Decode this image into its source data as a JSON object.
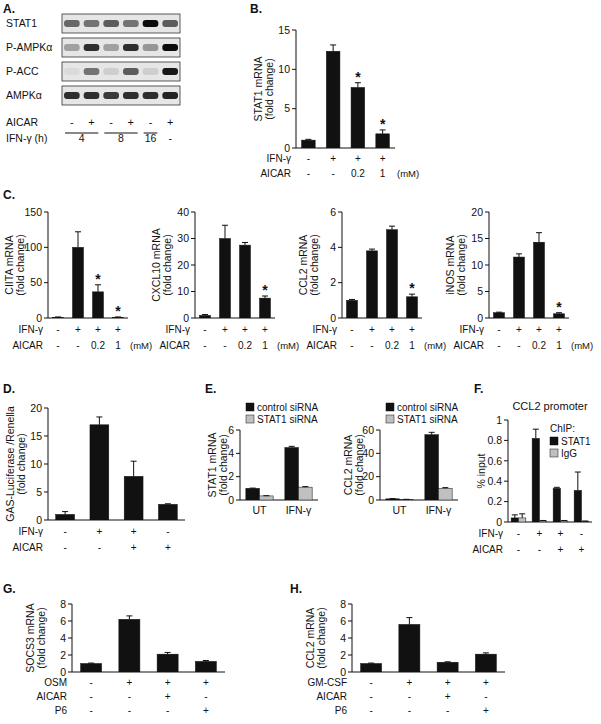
{
  "blot": {
    "panel_label": "A.",
    "rows": [
      "STAT1",
      "P-AMPKα",
      "P-ACC",
      "AMPKα"
    ],
    "conditions": [
      {
        "label": "AICAR",
        "marks": [
          "-",
          "+",
          "-",
          "+",
          "-",
          "+"
        ]
      },
      {
        "label": "IFN-γ (h)",
        "marks": [
          "4",
          "8",
          "16",
          "-"
        ]
      }
    ]
  },
  "chart_data": [
    {
      "type": "bar",
      "panel_label": "B.",
      "ylabel": [
        "STAT1 mRNA",
        "(fold change)"
      ],
      "categories": [
        null,
        null,
        null,
        null
      ],
      "values": [
        1,
        12.3,
        7.7,
        1.8
      ],
      "errors": [
        0.1,
        0.8,
        0.6,
        0.5
      ],
      "significance": [
        null,
        null,
        "*",
        "*"
      ],
      "color": "#111111",
      "ylim": [
        0,
        15
      ],
      "yticks": [
        0,
        5,
        10,
        15
      ],
      "grid": false,
      "conditions": [
        {
          "label": "IFN-γ",
          "marks": [
            "-",
            "+",
            "+",
            "+"
          ]
        },
        {
          "label": "AICAR",
          "marks": [
            "-",
            "-",
            "0.2",
            "1"
          ],
          "suffix": "(mM)"
        }
      ]
    },
    {
      "type": "bar",
      "panel_label": "C.",
      "ylabel": [
        "CIITA mRNA",
        "(fold change)"
      ],
      "categories": [
        null,
        null,
        null,
        null
      ],
      "values": [
        1,
        100,
        37,
        1
      ],
      "errors": [
        0.5,
        22,
        10,
        0.5
      ],
      "significance": [
        null,
        null,
        "*",
        "*"
      ],
      "color": "#111111",
      "ylim": [
        0,
        150
      ],
      "yticks": [
        0,
        50,
        100,
        150
      ],
      "grid": false,
      "conditions": [
        {
          "label": "IFN-γ",
          "marks": [
            "-",
            "+",
            "+",
            "+"
          ]
        },
        {
          "label": "AICAR",
          "marks": [
            "-",
            "-",
            "0.2",
            "1"
          ],
          "suffix": "(mM)"
        }
      ]
    },
    {
      "type": "bar",
      "ylabel": [
        "CXCL10 mRNA",
        "(fold change)"
      ],
      "categories": [
        null,
        null,
        null,
        null
      ],
      "values": [
        1,
        30,
        27.5,
        7.5
      ],
      "errors": [
        0.3,
        5,
        1,
        0.8
      ],
      "significance": [
        null,
        null,
        null,
        "*"
      ],
      "color": "#111111",
      "ylim": [
        0,
        40
      ],
      "yticks": [
        0,
        10,
        20,
        30,
        40
      ],
      "grid": false,
      "conditions": [
        {
          "label": "IFN-γ",
          "marks": [
            "-",
            "+",
            "+",
            "+"
          ]
        },
        {
          "label": "AICAR",
          "marks": [
            "-",
            "-",
            "0.2",
            "1"
          ],
          "suffix": "(mM)"
        }
      ]
    },
    {
      "type": "bar",
      "ylabel": [
        "CCL2 mRNA",
        "(fold change)"
      ],
      "categories": [
        null,
        null,
        null,
        null
      ],
      "values": [
        1,
        3.8,
        5,
        1.2
      ],
      "errors": [
        0.05,
        0.1,
        0.2,
        0.15
      ],
      "significance": [
        null,
        null,
        null,
        "*"
      ],
      "color": "#111111",
      "ylim": [
        0,
        6
      ],
      "yticks": [
        0,
        2,
        4,
        6
      ],
      "grid": false,
      "conditions": [
        {
          "label": "IFN-γ",
          "marks": [
            "-",
            "+",
            "+",
            "+"
          ]
        },
        {
          "label": "AICAR",
          "marks": [
            "-",
            "-",
            "0.2",
            "1"
          ],
          "suffix": "(mM)"
        }
      ]
    },
    {
      "type": "bar",
      "ylabel": [
        "iNOS mRNA",
        "(fold change)"
      ],
      "categories": [
        null,
        null,
        null,
        null
      ],
      "values": [
        1,
        11.5,
        14.3,
        0.8
      ],
      "errors": [
        0.1,
        0.6,
        1.8,
        0.2
      ],
      "significance": [
        null,
        null,
        null,
        "*"
      ],
      "color": "#111111",
      "ylim": [
        0,
        20
      ],
      "yticks": [
        0,
        5,
        10,
        15,
        20
      ],
      "grid": false,
      "conditions": [
        {
          "label": "IFN-γ",
          "marks": [
            "-",
            "+",
            "+",
            "+"
          ]
        },
        {
          "label": "AICAR",
          "marks": [
            "-",
            "-",
            "0.2",
            "1"
          ],
          "suffix": "(mM)"
        }
      ]
    },
    {
      "type": "bar",
      "panel_label": "D.",
      "ylabel": [
        "GAS-Luciferase /Renella",
        "(fold change)"
      ],
      "categories": [
        null,
        null,
        null,
        null
      ],
      "values": [
        1,
        17,
        7.8,
        2.8
      ],
      "errors": [
        0.5,
        1.4,
        2.7,
        0.1
      ],
      "color": "#111111",
      "ylim": [
        0,
        20
      ],
      "yticks": [
        0,
        5,
        10,
        15,
        20
      ],
      "grid": false,
      "conditions": [
        {
          "label": "IFN-γ",
          "marks": [
            "-",
            "+",
            "+",
            "-"
          ]
        },
        {
          "label": "AICAR",
          "marks": [
            "-",
            "-",
            "+",
            "+"
          ]
        }
      ]
    },
    {
      "type": "bar",
      "panel_label": "E.",
      "ylabel": [
        "STAT1 mRNA",
        "(fold change)"
      ],
      "categories": [
        "UT",
        "IFN-γ"
      ],
      "legend": "top",
      "ylim": [
        0,
        6
      ],
      "yticks": [
        0,
        2,
        4,
        6
      ],
      "grid": false,
      "series": [
        {
          "name": "control siRNA",
          "color": "#111111",
          "values": [
            1,
            4.5
          ],
          "errors": [
            0.02,
            0.1
          ]
        },
        {
          "name": "STAT1 siRNA",
          "color": "#c0c0c0",
          "values": [
            0.35,
            1.1
          ],
          "errors": [
            0.02,
            0.05
          ]
        }
      ]
    },
    {
      "type": "bar",
      "ylabel": [
        "CCL2 mRNA",
        "(fold change)"
      ],
      "categories": [
        "UT",
        "IFN-γ"
      ],
      "legend": "top",
      "ylim": [
        0,
        60
      ],
      "yticks": [
        0,
        20,
        40,
        60
      ],
      "grid": false,
      "series": [
        {
          "name": "control siRNA",
          "color": "#111111",
          "values": [
            1,
            56
          ],
          "errors": [
            0.2,
            2
          ]
        },
        {
          "name": "STAT1 siRNA",
          "color": "#c0c0c0",
          "values": [
            0.5,
            10
          ],
          "errors": [
            0.1,
            0.6
          ]
        }
      ]
    },
    {
      "type": "bar",
      "panel_label": "F.",
      "title": "CCL2 promoter",
      "ylabel": [
        "% input"
      ],
      "categories": [
        null,
        null,
        null,
        null
      ],
      "legend": "top-right",
      "legend_title": "ChIP:",
      "ylim": [
        0,
        1
      ],
      "yticks": [
        0,
        0.2,
        0.4,
        0.6,
        0.8,
        1
      ],
      "grid": false,
      "series": [
        {
          "name": "STAT1",
          "color": "#111111",
          "values": [
            0.04,
            0.82,
            0.33,
            0.31
          ],
          "errors": [
            0.03,
            0.09,
            0.01,
            0.18
          ]
        },
        {
          "name": "IgG",
          "color": "#c0c0c0",
          "values": [
            0.04,
            0.01,
            0.01,
            0.005
          ],
          "errors": [
            0.04,
            0.005,
            0.005,
            0.005
          ]
        }
      ],
      "conditions": [
        {
          "label": "IFN-γ",
          "marks": [
            "-",
            "+",
            "+",
            "-"
          ]
        },
        {
          "label": "AICAR",
          "marks": [
            "-",
            "-",
            "+",
            "+"
          ]
        }
      ]
    },
    {
      "type": "bar",
      "panel_label": "G.",
      "ylabel": [
        "SOCS3 mRNA",
        "(fold change)"
      ],
      "categories": [
        null,
        null,
        null,
        null
      ],
      "values": [
        1,
        6.2,
        2.1,
        1.25
      ],
      "errors": [
        0.05,
        0.4,
        0.2,
        0.1
      ],
      "color": "#111111",
      "ylim": [
        0,
        8
      ],
      "yticks": [
        0,
        2,
        4,
        6,
        8
      ],
      "grid": false,
      "conditions": [
        {
          "label": "OSM",
          "marks": [
            "-",
            "+",
            "+",
            "+"
          ]
        },
        {
          "label": "AICAR",
          "marks": [
            "-",
            "-",
            "+",
            "-"
          ]
        },
        {
          "label": "P6",
          "marks": [
            "-",
            "-",
            "-",
            "+"
          ]
        }
      ]
    },
    {
      "type": "bar",
      "panel_label": "H.",
      "ylabel": [
        "CCL2 mRNA",
        "(fold change)"
      ],
      "categories": [
        null,
        null,
        null,
        null
      ],
      "values": [
        1,
        5.6,
        1.15,
        2.1
      ],
      "errors": [
        0.05,
        0.8,
        0.05,
        0.15
      ],
      "color": "#111111",
      "ylim": [
        0,
        8
      ],
      "yticks": [
        0,
        2,
        4,
        6,
        8
      ],
      "grid": false,
      "conditions": [
        {
          "label": "GM-CSF",
          "marks": [
            "-",
            "+",
            "+",
            "+"
          ]
        },
        {
          "label": "AICAR",
          "marks": [
            "-",
            "-",
            "+",
            "-"
          ]
        },
        {
          "label": "P6",
          "marks": [
            "-",
            "-",
            "-",
            "+"
          ]
        }
      ]
    }
  ]
}
